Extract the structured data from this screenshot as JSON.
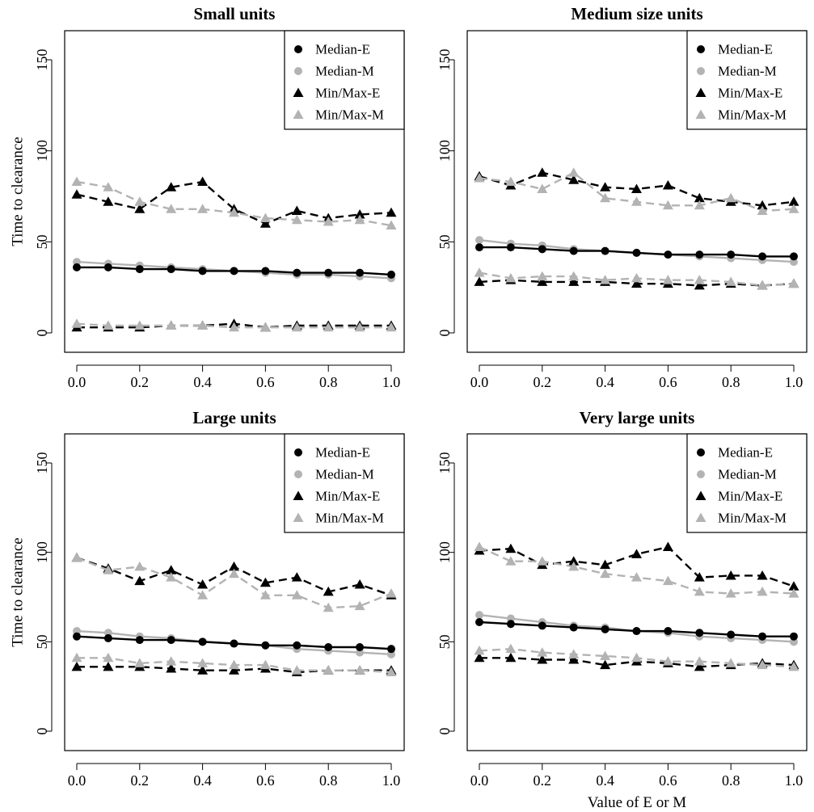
{
  "chart_data": [
    {
      "type": "line",
      "title": "Small units",
      "xlabel": "",
      "ylabel": "Time to clearance",
      "xlim": [
        0,
        1
      ],
      "ylim": [
        0,
        150
      ],
      "x": [
        0.0,
        0.1,
        0.2,
        0.3,
        0.4,
        0.5,
        0.6,
        0.7,
        0.8,
        0.9,
        1.0
      ],
      "x_ticks": [
        "0.0",
        "0.2",
        "0.4",
        "0.6",
        "0.8",
        "1.0"
      ],
      "y_ticks": [
        "0",
        "50",
        "100",
        "150"
      ],
      "legend_position": "top-right",
      "series": [
        {
          "name": "Median-E",
          "style": "median-e",
          "values": [
            36,
            36,
            35,
            35,
            34,
            34,
            34,
            33,
            33,
            33,
            32
          ]
        },
        {
          "name": "Median-M",
          "style": "median-m",
          "values": [
            39,
            38,
            37,
            36,
            35,
            34,
            33,
            32,
            32,
            31,
            30
          ]
        },
        {
          "name": "Min/Max-E",
          "style": "minmax-e",
          "group": "max",
          "values": [
            76,
            72,
            68,
            80,
            83,
            68,
            60,
            67,
            63,
            65,
            66
          ]
        },
        {
          "name": "Min/Max-M",
          "style": "minmax-m",
          "group": "max",
          "values": [
            83,
            80,
            72,
            68,
            68,
            66,
            63,
            62,
            61,
            62,
            59
          ]
        },
        {
          "name": "Min/Max-E",
          "style": "minmax-e",
          "group": "min",
          "values": [
            3,
            3,
            3,
            4,
            4,
            5,
            3,
            4,
            4,
            4,
            4
          ]
        },
        {
          "name": "Min/Max-M",
          "style": "minmax-m",
          "group": "min",
          "values": [
            5,
            4,
            4,
            4,
            4,
            3,
            3,
            3,
            3,
            3,
            3
          ]
        }
      ]
    },
    {
      "type": "line",
      "title": "Medium size units",
      "xlabel": "",
      "ylabel": "",
      "xlim": [
        0,
        1
      ],
      "ylim": [
        0,
        150
      ],
      "x": [
        0.0,
        0.1,
        0.2,
        0.3,
        0.4,
        0.5,
        0.6,
        0.7,
        0.8,
        0.9,
        1.0
      ],
      "x_ticks": [
        "0.0",
        "0.2",
        "0.4",
        "0.6",
        "0.8",
        "1.0"
      ],
      "y_ticks": [
        "0",
        "50",
        "100",
        "150"
      ],
      "legend_position": "top-right",
      "series": [
        {
          "name": "Median-E",
          "style": "median-e",
          "values": [
            47,
            47,
            46,
            45,
            45,
            44,
            43,
            43,
            43,
            42,
            42
          ]
        },
        {
          "name": "Median-M",
          "style": "median-m",
          "values": [
            51,
            49,
            48,
            46,
            45,
            44,
            43,
            42,
            41,
            40,
            39
          ]
        },
        {
          "name": "Min/Max-E",
          "style": "minmax-e",
          "group": "max",
          "values": [
            86,
            81,
            88,
            84,
            80,
            79,
            81,
            74,
            72,
            70,
            72
          ]
        },
        {
          "name": "Min/Max-M",
          "style": "minmax-m",
          "group": "max",
          "values": [
            85,
            83,
            79,
            88,
            74,
            72,
            70,
            70,
            74,
            67,
            68
          ]
        },
        {
          "name": "Min/Max-E",
          "style": "minmax-e",
          "group": "min",
          "values": [
            28,
            29,
            28,
            28,
            28,
            27,
            27,
            26,
            27,
            26,
            27
          ]
        },
        {
          "name": "Min/Max-M",
          "style": "minmax-m",
          "group": "min",
          "values": [
            33,
            30,
            31,
            31,
            29,
            30,
            29,
            29,
            28,
            26,
            27
          ]
        }
      ]
    },
    {
      "type": "line",
      "title": "Large units",
      "xlabel": "",
      "ylabel": "Time to clearance",
      "xlim": [
        0,
        1
      ],
      "ylim": [
        0,
        150
      ],
      "x": [
        0.0,
        0.1,
        0.2,
        0.3,
        0.4,
        0.5,
        0.6,
        0.7,
        0.8,
        0.9,
        1.0
      ],
      "x_ticks": [
        "0.0",
        "0.2",
        "0.4",
        "0.6",
        "0.8",
        "1.0"
      ],
      "y_ticks": [
        "0",
        "50",
        "100",
        "150"
      ],
      "legend_position": "top-right",
      "series": [
        {
          "name": "Median-E",
          "style": "median-e",
          "values": [
            53,
            52,
            51,
            51,
            50,
            49,
            48,
            48,
            47,
            47,
            46
          ]
        },
        {
          "name": "Median-M",
          "style": "median-m",
          "values": [
            56,
            55,
            53,
            52,
            50,
            49,
            48,
            46,
            45,
            44,
            43
          ]
        },
        {
          "name": "Min/Max-E",
          "style": "minmax-e",
          "group": "max",
          "values": [
            97,
            91,
            84,
            90,
            82,
            92,
            83,
            86,
            78,
            82,
            76
          ]
        },
        {
          "name": "Min/Max-M",
          "style": "minmax-m",
          "group": "max",
          "values": [
            97,
            90,
            92,
            86,
            76,
            88,
            76,
            76,
            69,
            70,
            77
          ]
        },
        {
          "name": "Min/Max-E",
          "style": "minmax-e",
          "group": "min",
          "values": [
            36,
            36,
            36,
            35,
            34,
            34,
            35,
            33,
            34,
            34,
            34
          ]
        },
        {
          "name": "Min/Max-M",
          "style": "minmax-m",
          "group": "min",
          "values": [
            41,
            41,
            38,
            39,
            38,
            37,
            37,
            34,
            34,
            34,
            33
          ]
        }
      ]
    },
    {
      "type": "line",
      "title": "Very large units",
      "xlabel": "Value of E or M",
      "ylabel": "",
      "xlim": [
        0,
        1
      ],
      "ylim": [
        0,
        150
      ],
      "x": [
        0.0,
        0.1,
        0.2,
        0.3,
        0.4,
        0.5,
        0.6,
        0.7,
        0.8,
        0.9,
        1.0
      ],
      "x_ticks": [
        "0.0",
        "0.2",
        "0.4",
        "0.6",
        "0.8",
        "1.0"
      ],
      "y_ticks": [
        "0",
        "50",
        "100",
        "150"
      ],
      "legend_position": "top-right",
      "series": [
        {
          "name": "Median-E",
          "style": "median-e",
          "values": [
            61,
            60,
            59,
            58,
            57,
            56,
            56,
            55,
            54,
            53,
            53
          ]
        },
        {
          "name": "Median-M",
          "style": "median-m",
          "values": [
            65,
            63,
            61,
            59,
            58,
            56,
            55,
            53,
            52,
            51,
            50
          ]
        },
        {
          "name": "Min/Max-E",
          "style": "minmax-e",
          "group": "max",
          "values": [
            101,
            102,
            93,
            95,
            93,
            99,
            103,
            86,
            87,
            87,
            81
          ]
        },
        {
          "name": "Min/Max-M",
          "style": "minmax-m",
          "group": "max",
          "values": [
            103,
            95,
            95,
            92,
            88,
            86,
            84,
            78,
            77,
            78,
            77
          ]
        },
        {
          "name": "Min/Max-E",
          "style": "minmax-e",
          "group": "min",
          "values": [
            41,
            41,
            40,
            40,
            37,
            39,
            38,
            36,
            37,
            38,
            37
          ]
        },
        {
          "name": "Min/Max-M",
          "style": "minmax-m",
          "group": "min",
          "values": [
            45,
            46,
            44,
            43,
            42,
            41,
            39,
            39,
            38,
            37,
            36
          ]
        }
      ]
    }
  ],
  "bottom_xlabel": "Value of E or M",
  "series_styles": {
    "median-e": {
      "color": "#000000",
      "dash": "solid",
      "marker": "circle"
    },
    "median-m": {
      "color": "#b3b3b3",
      "dash": "solid",
      "marker": "circle"
    },
    "minmax-e": {
      "color": "#000000",
      "dash": "dashed",
      "marker": "triangle"
    },
    "minmax-m": {
      "color": "#b3b3b3",
      "dash": "dashed",
      "marker": "triangle"
    }
  },
  "legend_entries": [
    {
      "label": "Median-E",
      "style": "median-e"
    },
    {
      "label": "Median-M",
      "style": "median-m"
    },
    {
      "label": "Min/Max-E",
      "style": "minmax-e"
    },
    {
      "label": "Min/Max-M",
      "style": "minmax-m"
    }
  ]
}
